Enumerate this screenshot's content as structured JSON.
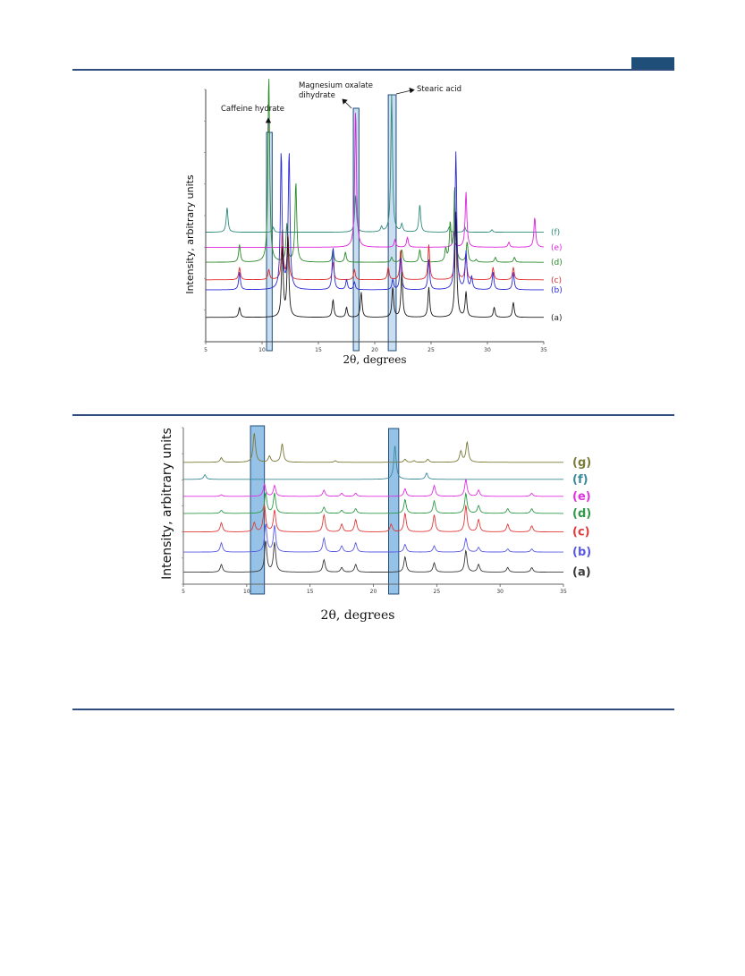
{
  "chart_data": [
    {
      "type": "line",
      "xlabel": "2θ, degrees",
      "ylabel": "Intensity, arbitrary units",
      "xlim": [
        5,
        35
      ],
      "x_ticks": [
        "5",
        "10",
        "15",
        "20",
        "25",
        "30",
        "35"
      ],
      "annotations": {
        "caffeine": "Caffeine hydrate",
        "mag1": "Magnesium oxalate",
        "mag2": "dihydrate",
        "stearic": "Stearic acid"
      },
      "highlight_bands_2theta": [
        [
          10.4,
          10.9
        ],
        [
          18.1,
          18.6
        ],
        [
          21.2,
          21.9
        ]
      ],
      "series": [
        {
          "name": "(f)",
          "color": "#2e8b7a",
          "baseline": 0.43,
          "peaks": [
            [
              6.9,
              0.1
            ],
            [
              11.0,
              0.02
            ],
            [
              18.3,
              0.15
            ],
            [
              20.6,
              0.02
            ],
            [
              21.5,
              0.55
            ],
            [
              22.4,
              0.03
            ],
            [
              24.0,
              0.11
            ],
            [
              26.6,
              0.02
            ],
            [
              28.0,
              0.02
            ],
            [
              30.4,
              0.01
            ]
          ]
        },
        {
          "name": "(e)",
          "color": "#dd22dd",
          "baseline": 0.37,
          "peaks": [
            [
              18.3,
              0.55
            ],
            [
              21.8,
              0.03
            ],
            [
              22.9,
              0.04
            ],
            [
              27.0,
              0.06
            ],
            [
              28.1,
              0.22
            ],
            [
              31.9,
              0.02
            ],
            [
              34.2,
              0.12
            ]
          ]
        },
        {
          "name": "(d)",
          "color": "#2b8a2b",
          "baseline": 0.31,
          "peaks": [
            [
              8.0,
              0.07
            ],
            [
              10.6,
              0.75
            ],
            [
              12.2,
              0.15
            ],
            [
              13.0,
              0.32
            ],
            [
              16.3,
              0.05
            ],
            [
              17.4,
              0.04
            ],
            [
              21.5,
              0.02
            ],
            [
              22.4,
              0.05
            ],
            [
              24.0,
              0.05
            ],
            [
              26.3,
              0.05
            ],
            [
              26.7,
              0.15
            ],
            [
              27.1,
              0.3
            ],
            [
              28.2,
              0.08
            ],
            [
              29.0,
              0.01
            ],
            [
              30.7,
              0.02
            ],
            [
              32.4,
              0.02
            ]
          ]
        },
        {
          "name": "(c)",
          "color": "#e02a2a",
          "baseline": 0.24,
          "peaks": [
            [
              8.0,
              0.05
            ],
            [
              10.6,
              0.04
            ],
            [
              11.8,
              0.2
            ],
            [
              12.3,
              0.18
            ],
            [
              16.3,
              0.07
            ],
            [
              18.2,
              0.04
            ],
            [
              21.2,
              0.05
            ],
            [
              22.3,
              0.12
            ],
            [
              24.8,
              0.14
            ],
            [
              27.2,
              0.25
            ],
            [
              28.1,
              0.1
            ],
            [
              30.5,
              0.05
            ],
            [
              32.3,
              0.05
            ]
          ]
        },
        {
          "name": "(b)",
          "color": "#2a2ad8",
          "baseline": 0.2,
          "peaks": [
            [
              8.0,
              0.07
            ],
            [
              11.7,
              0.55
            ],
            [
              12.4,
              0.55
            ],
            [
              16.3,
              0.17
            ],
            [
              17.5,
              0.04
            ],
            [
              18.2,
              0.03
            ],
            [
              21.6,
              0.04
            ],
            [
              22.3,
              0.13
            ],
            [
              24.8,
              0.12
            ],
            [
              27.2,
              0.55
            ],
            [
              28.1,
              0.15
            ],
            [
              28.6,
              0.05
            ],
            [
              30.5,
              0.07
            ],
            [
              32.3,
              0.07
            ]
          ]
        },
        {
          "name": "(a)",
          "color": "#1a1a1a",
          "baseline": 0.09,
          "peaks": [
            [
              8.0,
              0.04
            ],
            [
              11.8,
              0.28
            ],
            [
              12.3,
              0.32
            ],
            [
              16.3,
              0.07
            ],
            [
              17.5,
              0.04
            ],
            [
              18.8,
              0.1
            ],
            [
              21.6,
              0.12
            ],
            [
              22.4,
              0.18
            ],
            [
              24.8,
              0.12
            ],
            [
              27.2,
              0.42
            ],
            [
              28.1,
              0.1
            ],
            [
              30.6,
              0.04
            ],
            [
              32.3,
              0.06
            ]
          ]
        }
      ]
    },
    {
      "type": "line",
      "xlabel": "2θ, degrees",
      "ylabel": "Intensity, arbitrary units",
      "xlim": [
        5,
        35
      ],
      "x_ticks": [
        "5",
        "10",
        "15",
        "20",
        "25",
        "30",
        "35"
      ],
      "highlight_bands_2theta": [
        [
          10.3,
          11.4
        ],
        [
          21.2,
          22.0
        ]
      ],
      "series": [
        {
          "name": "(g)",
          "color": "#7a7a3a",
          "baseline": 0.77,
          "peaks": [
            [
              8.0,
              0.03
            ],
            [
              10.6,
              0.19
            ],
            [
              11.8,
              0.04
            ],
            [
              12.8,
              0.12
            ],
            [
              17.0,
              0.01
            ],
            [
              22.5,
              0.02
            ],
            [
              23.2,
              0.01
            ],
            [
              24.3,
              0.02
            ],
            [
              26.9,
              0.07
            ],
            [
              27.4,
              0.13
            ]
          ]
        },
        {
          "name": "(f)",
          "color": "#3a8a9a",
          "baseline": 0.66,
          "peaks": [
            [
              6.7,
              0.03
            ],
            [
              21.7,
              0.22
            ],
            [
              24.2,
              0.04
            ]
          ]
        },
        {
          "name": "(e)",
          "color": "#e030e0",
          "baseline": 0.55,
          "peaks": [
            [
              8.0,
              0.01
            ],
            [
              11.4,
              0.08
            ],
            [
              12.2,
              0.07
            ],
            [
              16.1,
              0.04
            ],
            [
              17.5,
              0.02
            ],
            [
              18.6,
              0.02
            ],
            [
              22.5,
              0.05
            ],
            [
              24.8,
              0.07
            ],
            [
              27.3,
              0.11
            ],
            [
              28.3,
              0.04
            ],
            [
              32.5,
              0.02
            ]
          ]
        },
        {
          "name": "(d)",
          "color": "#2f9a4a",
          "baseline": 0.44,
          "peaks": [
            [
              8.0,
              0.02
            ],
            [
              11.5,
              0.13
            ],
            [
              12.2,
              0.13
            ],
            [
              16.1,
              0.04
            ],
            [
              17.5,
              0.02
            ],
            [
              18.6,
              0.03
            ],
            [
              22.5,
              0.09
            ],
            [
              24.8,
              0.08
            ],
            [
              27.3,
              0.13
            ],
            [
              28.3,
              0.05
            ],
            [
              30.6,
              0.03
            ],
            [
              32.5,
              0.03
            ]
          ]
        },
        {
          "name": "(c)",
          "color": "#e03a3a",
          "baseline": 0.32,
          "peaks": [
            [
              8.0,
              0.06
            ],
            [
              10.6,
              0.06
            ],
            [
              11.4,
              0.17
            ],
            [
              12.2,
              0.14
            ],
            [
              16.1,
              0.11
            ],
            [
              17.5,
              0.05
            ],
            [
              18.6,
              0.08
            ],
            [
              21.4,
              0.05
            ],
            [
              22.5,
              0.12
            ],
            [
              24.8,
              0.11
            ],
            [
              27.3,
              0.17
            ],
            [
              28.3,
              0.08
            ],
            [
              30.6,
              0.05
            ],
            [
              32.5,
              0.04
            ]
          ]
        },
        {
          "name": "(b)",
          "color": "#5a5ae0",
          "baseline": 0.19,
          "peaks": [
            [
              8.0,
              0.06
            ],
            [
              11.5,
              0.18
            ],
            [
              12.2,
              0.17
            ],
            [
              16.1,
              0.09
            ],
            [
              17.5,
              0.04
            ],
            [
              18.6,
              0.06
            ],
            [
              22.5,
              0.05
            ],
            [
              24.8,
              0.04
            ],
            [
              27.3,
              0.09
            ],
            [
              28.3,
              0.03
            ],
            [
              30.6,
              0.02
            ],
            [
              32.5,
              0.02
            ]
          ]
        },
        {
          "name": "(a)",
          "color": "#3a3a3a",
          "baseline": 0.06,
          "peaks": [
            [
              8.0,
              0.05
            ],
            [
              11.5,
              0.2
            ],
            [
              12.2,
              0.19
            ],
            [
              16.1,
              0.08
            ],
            [
              17.5,
              0.03
            ],
            [
              18.6,
              0.05
            ],
            [
              22.5,
              0.1
            ],
            [
              24.8,
              0.06
            ],
            [
              27.3,
              0.14
            ],
            [
              28.3,
              0.05
            ],
            [
              30.6,
              0.03
            ],
            [
              32.5,
              0.03
            ]
          ]
        }
      ]
    }
  ]
}
